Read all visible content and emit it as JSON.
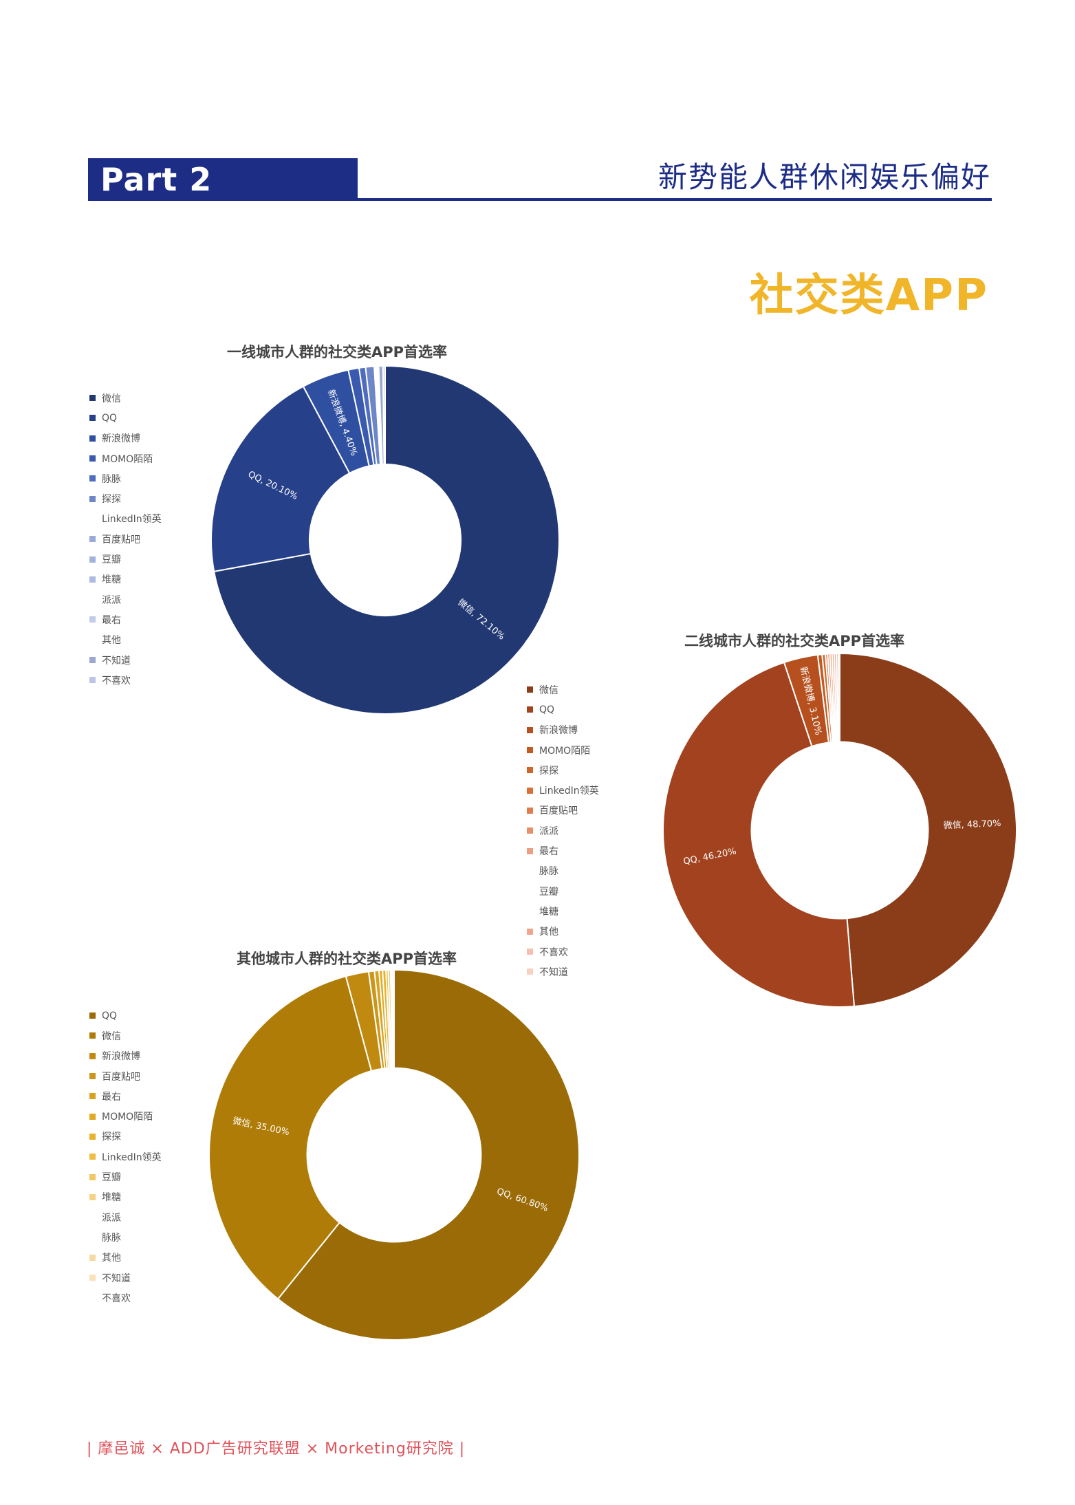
{
  "header": {
    "part_label": "Part 2",
    "title": "新势能人群休闲娱乐偏好"
  },
  "section_title": "社交类APP",
  "footer": "| 摩邑诚 × ADD广告研究联盟 × Morketing研究院 |",
  "chart_data": [
    {
      "type": "pie",
      "donut": true,
      "title": "一线城市人群的社交类APP首选率",
      "legend_position": "left",
      "categories": [
        "微信",
        "QQ",
        "新浪微博",
        "MOMO陌陌",
        "脉脉",
        "探探",
        "LinkedIn领英",
        "百度贴吧",
        "豆瓣",
        "堆糖",
        "派派",
        "最右",
        "其他",
        "不知道",
        "不喜欢"
      ],
      "values": [
        72.1,
        20.1,
        4.4,
        1.0,
        0.6,
        0.8,
        0.0,
        0.1,
        0.1,
        0.1,
        0.0,
        0.1,
        0.0,
        0.4,
        0.2
      ],
      "colors": [
        "#223873",
        "#27408a",
        "#2f4fa0",
        "#3a5ab0",
        "#4f6cbd",
        "#6c86c8",
        "#8ea1d6",
        "#98a9da",
        "#a2b2de",
        "#adbbe2",
        "#b7c3e6",
        "#c1ccea",
        "#cad4ee",
        "#9aa8d2",
        "#bcc6e4"
      ],
      "data_labels": [
        {
          "category": "微信",
          "text": "微信, 72.10%"
        },
        {
          "category": "QQ",
          "text": "QQ, 20.10%"
        },
        {
          "category": "新浪微博",
          "text": "新浪微博, 4.40%"
        }
      ]
    },
    {
      "type": "pie",
      "donut": true,
      "title": "二线城市人群的社交类APP首选率",
      "legend_position": "left",
      "categories": [
        "微信",
        "QQ",
        "新浪微博",
        "MOMO陌陌",
        "探探",
        "LinkedIn领英",
        "百度贴吧",
        "派派",
        "最右",
        "脉脉",
        "豆瓣",
        "堆糖",
        "其他",
        "不喜欢",
        "不知道"
      ],
      "values": [
        48.7,
        46.2,
        3.1,
        0.4,
        0.3,
        0.2,
        0.2,
        0.2,
        0.2,
        0.0,
        0.0,
        0.0,
        0.2,
        0.2,
        0.1
      ],
      "colors": [
        "#8b3d1a",
        "#a2421e",
        "#b6501e",
        "#c45a22",
        "#d0652b",
        "#da7038",
        "#e07d4a",
        "#e6906a",
        "#ec9f82",
        "#f1b39a",
        "#f4bea8",
        "#f6c8b5",
        "#f0a68e",
        "#f5c0b0",
        "#f8d0c4"
      ],
      "data_labels": [
        {
          "category": "微信",
          "text": "微信, 48.70%"
        },
        {
          "category": "QQ",
          "text": "QQ, 46.20%"
        },
        {
          "category": "新浪微博",
          "text": "新浪微博, 3.10%"
        }
      ]
    },
    {
      "type": "pie",
      "donut": true,
      "title": "其他城市人群的社交类APP首选率",
      "legend_position": "left",
      "categories": [
        "QQ",
        "微信",
        "新浪微博",
        "百度贴吧",
        "最右",
        "MOMO陌陌",
        "探探",
        "LinkedIn领英",
        "豆瓣",
        "堆糖",
        "派派",
        "脉脉",
        "其他",
        "不知道",
        "不喜欢"
      ],
      "values": [
        60.8,
        35.0,
        2.0,
        0.5,
        0.4,
        0.3,
        0.3,
        0.2,
        0.2,
        0.1,
        0.0,
        0.0,
        0.1,
        0.1,
        0.0
      ],
      "colors": [
        "#9a6b06",
        "#b07c08",
        "#c08a10",
        "#cc961a",
        "#d9a21e",
        "#e0aa22",
        "#e8b22c",
        "#efbd44",
        "#f2c864",
        "#f5d286",
        "#f7dba0",
        "#f9e3b4",
        "#f7d9a4",
        "#f9e2ba",
        "#fbeacc"
      ],
      "data_labels": [
        {
          "category": "QQ",
          "text": "QQ, 60.80%"
        },
        {
          "category": "微信",
          "text": "微信, 35.00%"
        }
      ]
    }
  ]
}
